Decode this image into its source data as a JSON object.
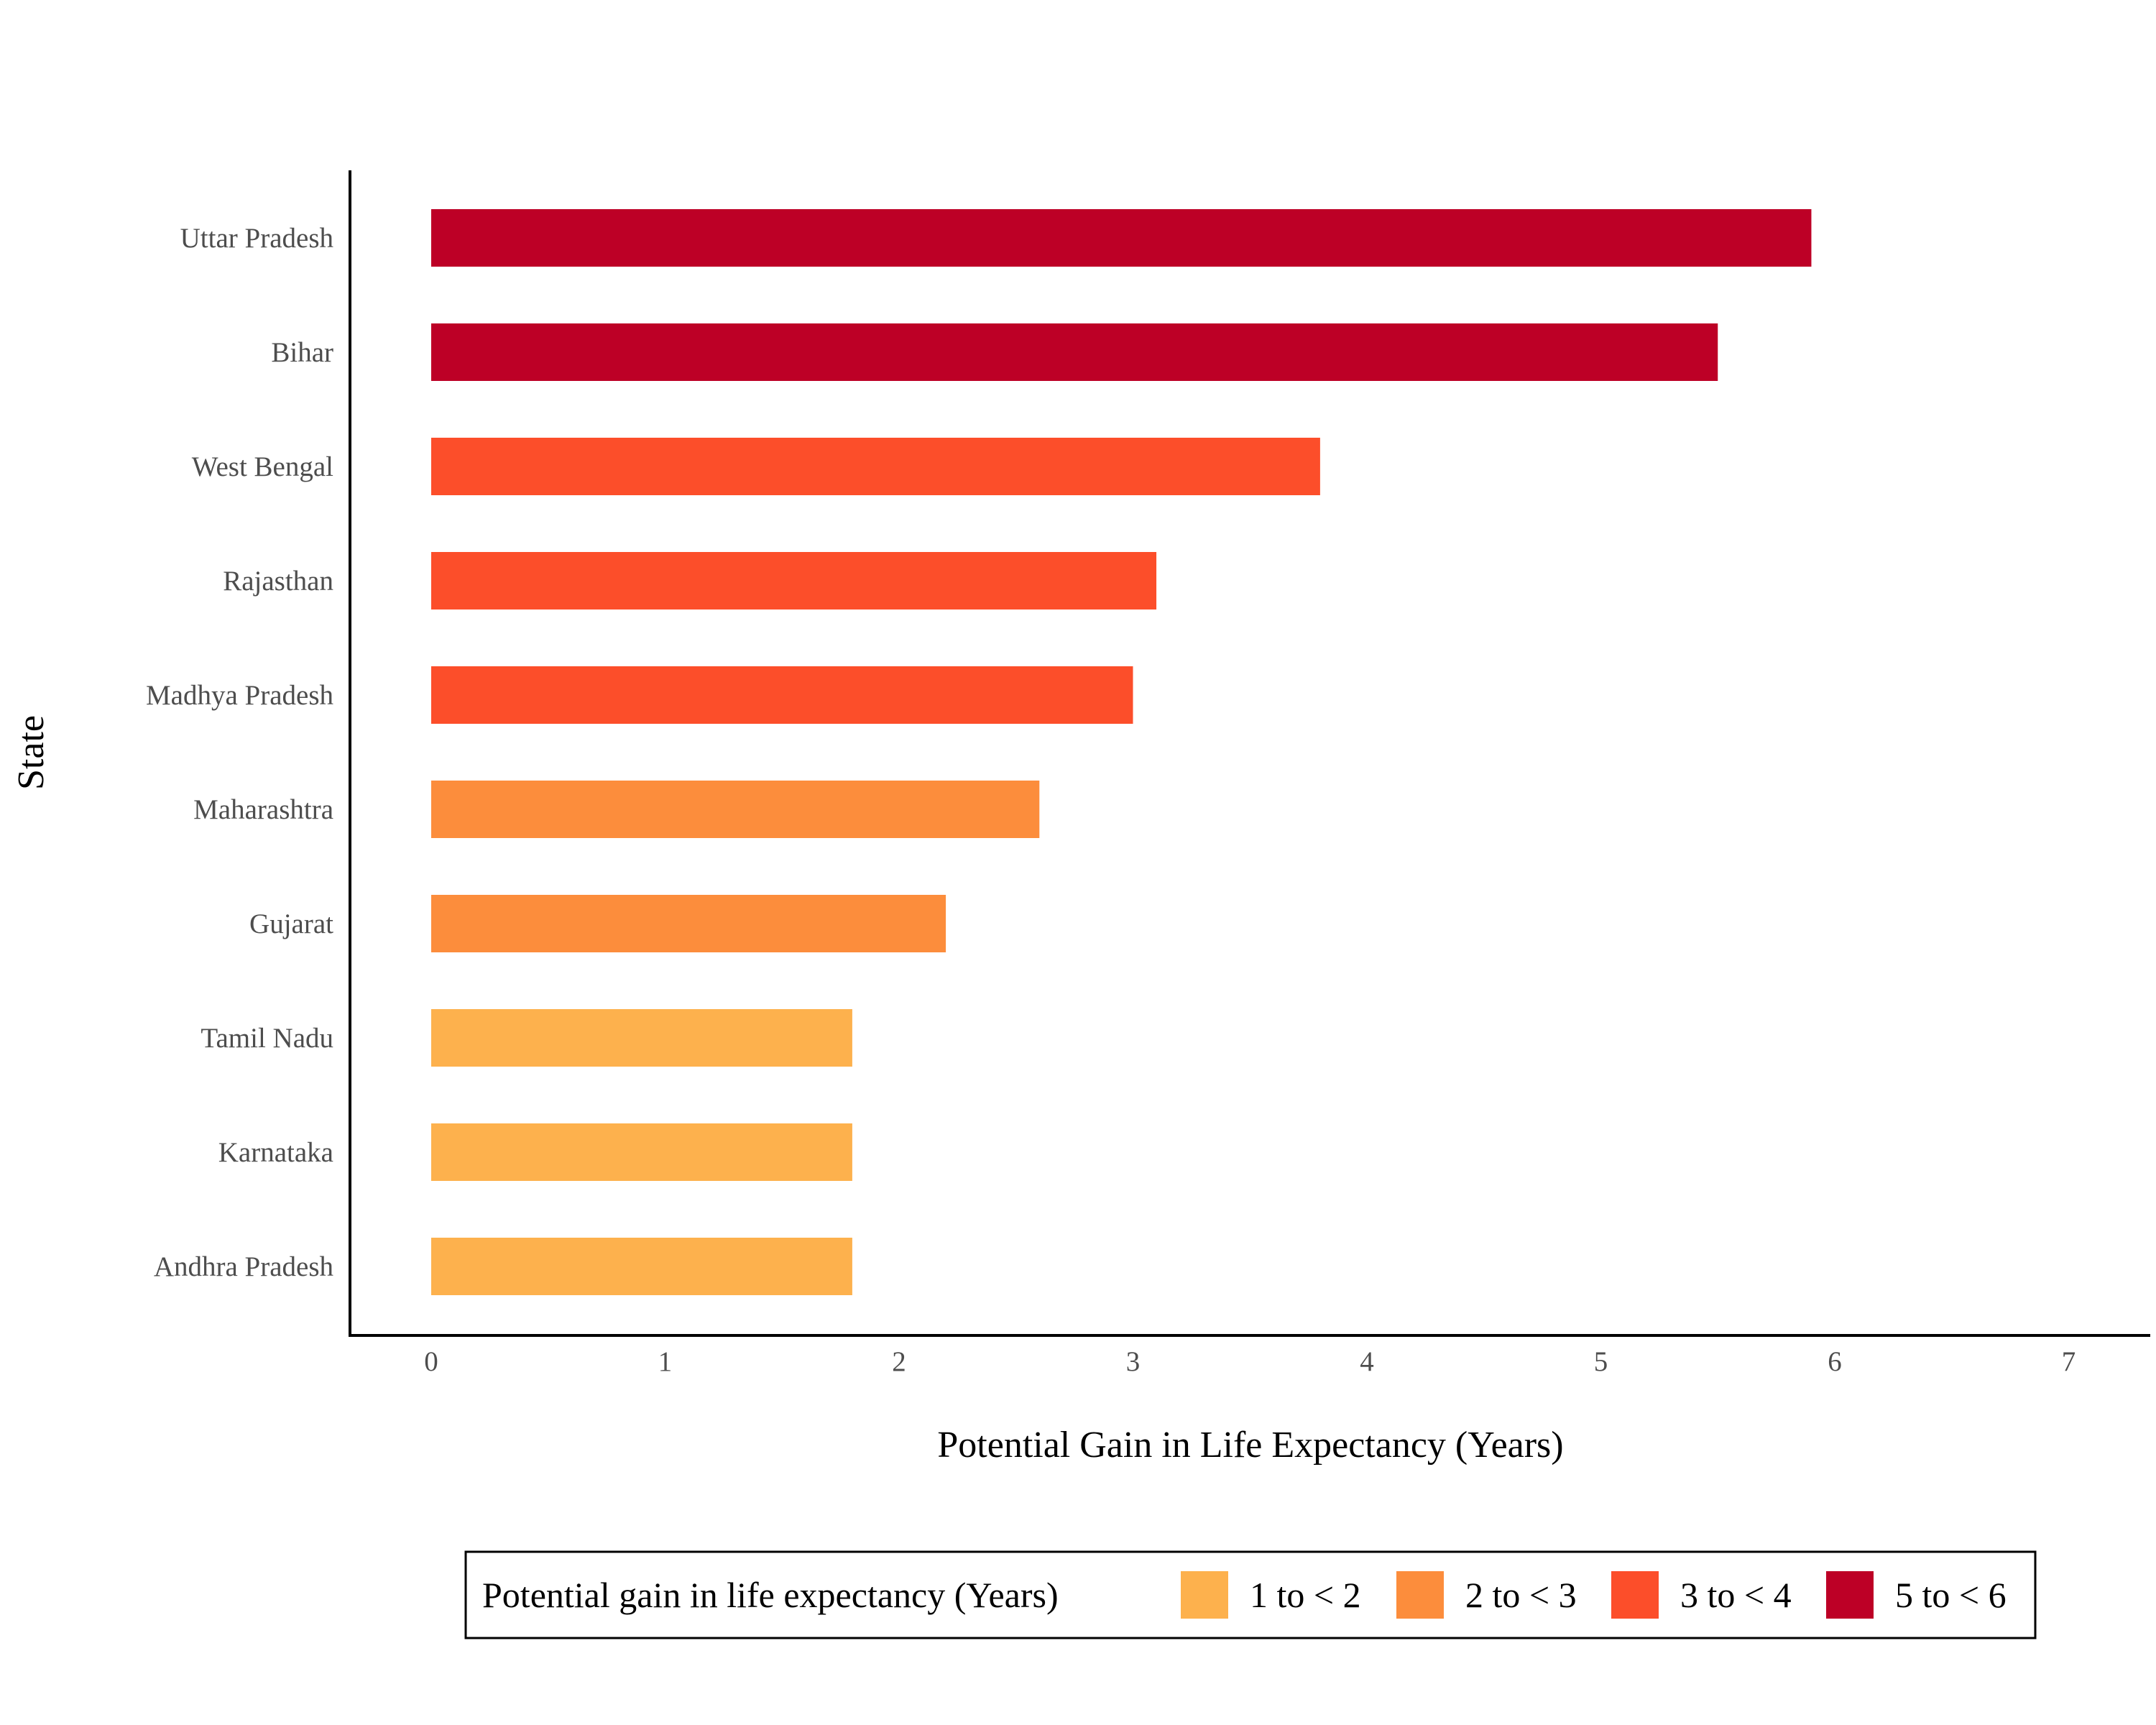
{
  "chart_data": {
    "type": "bar",
    "orientation": "horizontal",
    "xlabel": "Potential Gain in Life Expectancy (Years)",
    "ylabel": "State",
    "xlim": [
      0,
      7
    ],
    "x_ticks": [
      0,
      1,
      2,
      3,
      4,
      5,
      6,
      7
    ],
    "grid": false,
    "categories": [
      "Uttar Pradesh",
      "Bihar",
      "West Bengal",
      "Rajasthan",
      "Madhya Pradesh",
      "Maharashtra",
      "Gujarat",
      "Tamil Nadu",
      "Karnataka",
      "Andhra Pradesh"
    ],
    "values": [
      5.9,
      5.5,
      3.8,
      3.1,
      3.0,
      2.6,
      2.2,
      1.8,
      1.8,
      1.8
    ],
    "value_groups": [
      "5 to < 6",
      "5 to < 6",
      "3 to < 4",
      "3 to < 4",
      "3 to < 4",
      "2 to < 3",
      "2 to < 3",
      "1 to < 2",
      "1 to < 2",
      "1 to < 2"
    ],
    "legend": {
      "title": "Potential gain in life expectancy (Years)",
      "position": "bottom",
      "items": [
        {
          "label": "1 to < 2",
          "color": "#FDB14D"
        },
        {
          "label": "2 to < 3",
          "color": "#FC8D3C"
        },
        {
          "label": "3 to < 4",
          "color": "#FC4E2A"
        },
        {
          "label": "5 to < 6",
          "color": "#BD0026"
        }
      ]
    }
  }
}
